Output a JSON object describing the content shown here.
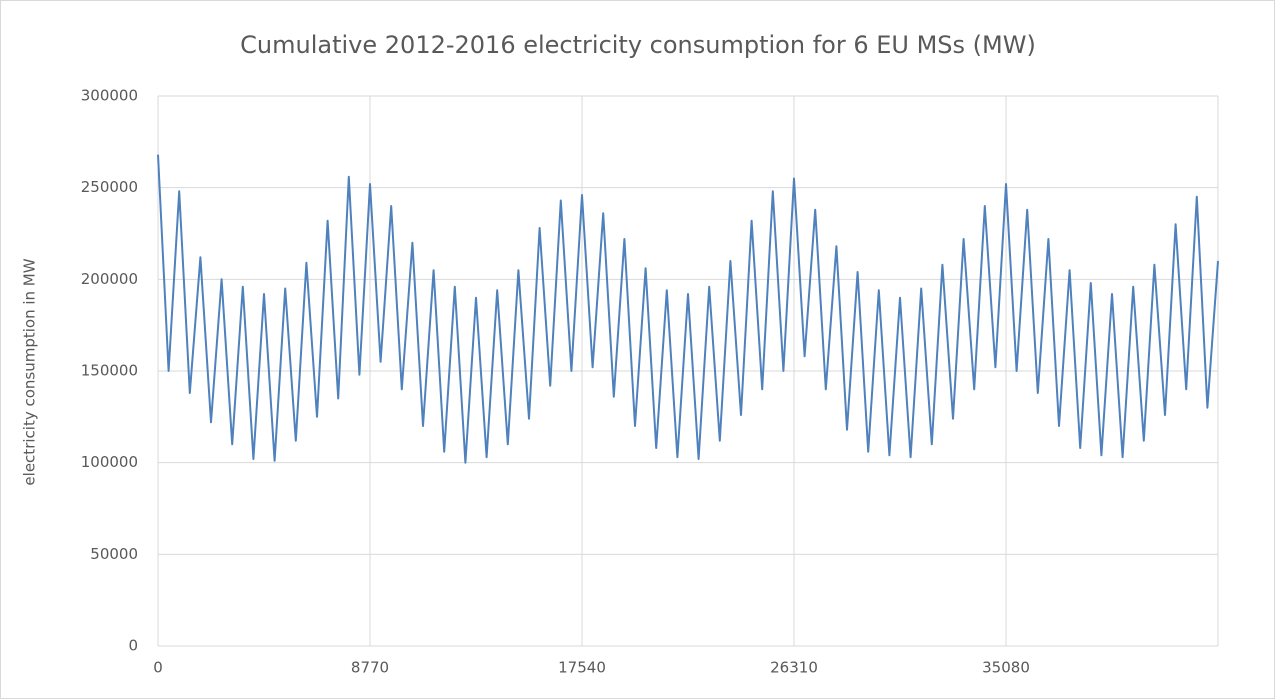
{
  "chart_data": {
    "type": "line",
    "title": "Cumulative 2012-2016 electricity consumption for 6 EU MSs (MW)",
    "y_label": "electricity consumption in MW",
    "x": [
      0,
      438,
      877,
      1315,
      1754,
      2192,
      2631,
      3069,
      3508,
      3946,
      4385,
      4823,
      5262,
      5700,
      6139,
      6577,
      7016,
      7454,
      7893,
      8331,
      8770,
      9208,
      9647,
      10085,
      10524,
      10962,
      11401,
      11839,
      12278,
      12716,
      13155,
      13593,
      14032,
      14470,
      14909,
      15347,
      15786,
      16224,
      16663,
      17101,
      17540,
      17978,
      18417,
      18855,
      19294,
      19732,
      20171,
      20609,
      21048,
      21486,
      21925,
      22363,
      22802,
      23240,
      23679,
      24117,
      24556,
      24994,
      25433,
      25871,
      26310,
      26748,
      27187,
      27625,
      28064,
      28502,
      28941,
      29379,
      29818,
      30256,
      30695,
      31133,
      31572,
      32010,
      32449,
      32887,
      33326,
      33764,
      34203,
      34641,
      35080,
      35518,
      35957,
      36395,
      36834,
      37272,
      37711,
      38149,
      38588,
      39026,
      39465,
      39903,
      40342,
      40780,
      41219,
      41657,
      42096,
      42534,
      42973,
      43411,
      43850
    ],
    "series": [
      {
        "color": "#4f81bd",
        "values": [
          268000,
          150000,
          248000,
          138000,
          212000,
          122000,
          200000,
          110000,
          196000,
          102000,
          192000,
          101000,
          195000,
          112000,
          209000,
          125000,
          232000,
          135000,
          256000,
          148000,
          252000,
          155000,
          240000,
          140000,
          220000,
          120000,
          205000,
          106000,
          196000,
          100000,
          190000,
          103000,
          194000,
          110000,
          205000,
          124000,
          228000,
          142000,
          243000,
          150000,
          246000,
          152000,
          236000,
          136000,
          222000,
          120000,
          206000,
          108000,
          194000,
          103000,
          192000,
          102000,
          196000,
          112000,
          210000,
          126000,
          232000,
          140000,
          248000,
          150000,
          255000,
          158000,
          238000,
          140000,
          218000,
          118000,
          204000,
          106000,
          194000,
          104000,
          190000,
          103000,
          195000,
          110000,
          208000,
          124000,
          222000,
          140000,
          240000,
          152000,
          252000,
          150000,
          238000,
          138000,
          222000,
          120000,
          205000,
          108000,
          198000,
          104000,
          192000,
          103000,
          196000,
          112000,
          208000,
          126000,
          230000,
          140000,
          245000,
          130000,
          210000
        ]
      }
    ],
    "xlim": [
      0,
      43850
    ],
    "xticks": [
      0,
      8770,
      17540,
      26310,
      35080
    ],
    "ylim": [
      0,
      300000
    ],
    "yticks": [
      0,
      50000,
      100000,
      150000,
      200000,
      250000,
      300000
    ],
    "grid": true
  }
}
